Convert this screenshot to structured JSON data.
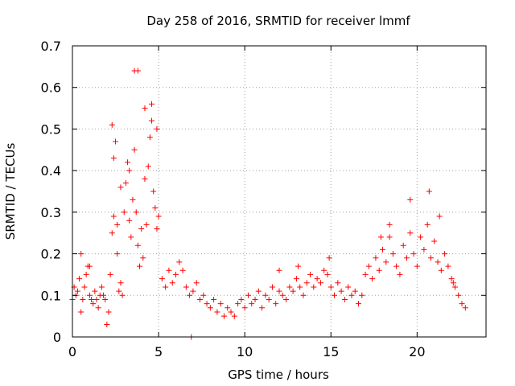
{
  "chart_data": {
    "type": "scatter",
    "title": "Day 258 of 2016, SRMTID for receiver lmmf",
    "xlabel": "GPS time / hours",
    "ylabel": "SRMTID / TECUs",
    "xlim": [
      0,
      24
    ],
    "ylim": [
      0,
      0.7
    ],
    "xticks": [
      0,
      5,
      10,
      15,
      20
    ],
    "xtick_labels": [
      "0",
      "5",
      "10",
      "15",
      "20"
    ],
    "yticks": [
      0,
      0.1,
      0.2,
      0.3,
      0.4,
      0.5,
      0.6,
      0.7
    ],
    "ytick_labels": [
      "0",
      "0.1",
      "0.2",
      "0.3",
      "0.4",
      "0.5",
      "0.6",
      "0.7"
    ],
    "grid": true,
    "marker": "+",
    "color": "#ff0000",
    "series": [
      {
        "name": "SRMTID",
        "x": [
          0.0,
          0.1,
          0.2,
          0.3,
          0.4,
          0.5,
          0.6,
          0.7,
          0.8,
          0.9,
          1.0,
          1.1,
          1.2,
          1.3,
          1.4,
          1.5,
          1.6,
          1.7,
          1.8,
          1.9,
          2.0,
          2.1,
          2.2,
          2.3,
          2.4,
          2.5,
          2.6,
          2.7,
          2.8,
          2.9,
          3.0,
          3.1,
          3.2,
          3.3,
          3.4,
          3.5,
          3.6,
          3.7,
          3.8,
          3.9,
          4.0,
          4.1,
          4.2,
          4.3,
          4.4,
          4.5,
          4.6,
          4.7,
          4.8,
          4.9,
          5.0,
          5.2,
          5.4,
          5.6,
          5.8,
          6.0,
          6.2,
          6.4,
          6.6,
          6.8,
          7.0,
          7.2,
          7.4,
          7.6,
          7.8,
          8.0,
          8.2,
          8.4,
          8.6,
          8.8,
          9.0,
          9.2,
          9.4,
          9.6,
          9.8,
          10.0,
          10.2,
          10.4,
          10.6,
          10.8,
          11.0,
          11.2,
          11.4,
          11.6,
          11.8,
          12.0,
          12.2,
          12.4,
          12.6,
          12.8,
          13.0,
          13.2,
          13.4,
          13.6,
          13.8,
          14.0,
          14.2,
          14.4,
          14.6,
          14.8,
          15.0,
          15.2,
          15.4,
          15.6,
          15.8,
          16.0,
          16.2,
          16.4,
          16.6,
          16.8,
          17.0,
          17.2,
          17.4,
          17.6,
          17.8,
          18.0,
          18.2,
          18.4,
          18.6,
          18.8,
          19.0,
          19.2,
          19.4,
          19.6,
          19.8,
          20.0,
          20.2,
          20.4,
          20.6,
          20.8,
          21.0,
          21.2,
          21.4,
          21.6,
          21.8,
          22.0,
          22.2,
          22.4,
          22.6,
          22.8,
          22.1,
          21.3,
          20.7,
          19.6,
          18.4,
          17.9,
          14.9,
          13.1,
          12.0,
          6.9,
          4.6,
          3.8,
          3.6,
          3.3,
          2.4,
          2.3,
          1.0,
          0.5,
          4.9,
          4.2,
          2.8,
          2.6
        ],
        "y": [
          0.09,
          0.12,
          0.1,
          0.11,
          0.14,
          0.06,
          0.09,
          0.12,
          0.15,
          0.17,
          0.1,
          0.09,
          0.08,
          0.11,
          0.09,
          0.07,
          0.1,
          0.12,
          0.1,
          0.09,
          0.03,
          0.06,
          0.15,
          0.25,
          0.43,
          0.47,
          0.2,
          0.11,
          0.13,
          0.1,
          0.3,
          0.37,
          0.42,
          0.28,
          0.24,
          0.33,
          0.45,
          0.3,
          0.22,
          0.17,
          0.26,
          0.19,
          0.38,
          0.27,
          0.41,
          0.48,
          0.52,
          0.35,
          0.31,
          0.26,
          0.29,
          0.14,
          0.12,
          0.16,
          0.13,
          0.15,
          0.18,
          0.16,
          0.12,
          0.1,
          0.11,
          0.13,
          0.09,
          0.1,
          0.08,
          0.07,
          0.09,
          0.06,
          0.08,
          0.05,
          0.07,
          0.06,
          0.05,
          0.08,
          0.09,
          0.07,
          0.1,
          0.08,
          0.09,
          0.11,
          0.07,
          0.1,
          0.09,
          0.12,
          0.08,
          0.11,
          0.1,
          0.09,
          0.12,
          0.11,
          0.14,
          0.12,
          0.1,
          0.13,
          0.15,
          0.12,
          0.14,
          0.13,
          0.16,
          0.15,
          0.12,
          0.1,
          0.13,
          0.11,
          0.09,
          0.12,
          0.1,
          0.11,
          0.08,
          0.1,
          0.15,
          0.17,
          0.14,
          0.19,
          0.16,
          0.21,
          0.18,
          0.24,
          0.2,
          0.17,
          0.15,
          0.22,
          0.19,
          0.25,
          0.2,
          0.17,
          0.24,
          0.21,
          0.27,
          0.19,
          0.23,
          0.18,
          0.16,
          0.2,
          0.17,
          0.14,
          0.12,
          0.1,
          0.08,
          0.07,
          0.13,
          0.29,
          0.35,
          0.33,
          0.27,
          0.24,
          0.19,
          0.17,
          0.16,
          0.0,
          0.56,
          0.64,
          0.64,
          0.4,
          0.29,
          0.51,
          0.17,
          0.2,
          0.5,
          0.55,
          0.36,
          0.27
        ]
      }
    ]
  }
}
